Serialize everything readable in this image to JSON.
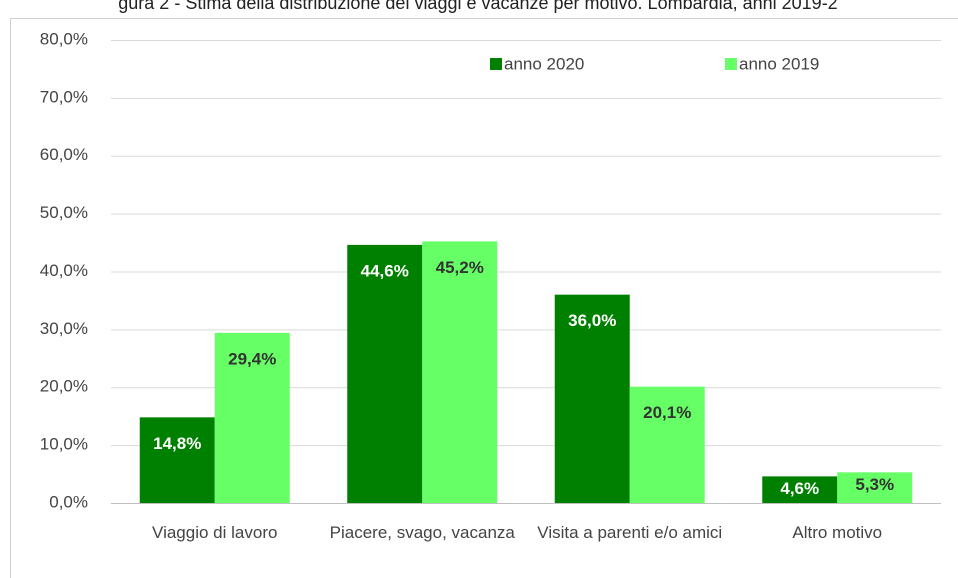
{
  "chart_data": {
    "type": "bar",
    "title": "gura 2 - Stima della distribuzione dei viaggi e vacanze per motivo. Lombardia, anni 2019-2",
    "categories": [
      "Viaggio di lavoro",
      "Piacere, svago, vacanza",
      "Visita a parenti e/o amici",
      "Altro motivo"
    ],
    "series": [
      {
        "name": "anno 2020",
        "color": "#008000",
        "label_color": "#ffffff",
        "values": [
          14.8,
          44.6,
          36.0,
          4.6
        ],
        "value_labels": [
          "14,8%",
          "44,6%",
          "36,0%",
          "4,6%"
        ]
      },
      {
        "name": "anno 2019",
        "color": "#66ff66",
        "label_color": "#333333",
        "values": [
          29.4,
          45.2,
          20.1,
          5.3
        ],
        "value_labels": [
          "29,4%",
          "45,2%",
          "20,1%",
          "5,3%"
        ]
      }
    ],
    "ylim": [
      0,
      80
    ],
    "yticks": [
      {
        "value": 0,
        "label": "0,0%"
      },
      {
        "value": 10,
        "label": "10,0%"
      },
      {
        "value": 20,
        "label": "20,0%"
      },
      {
        "value": 30,
        "label": "30,0%"
      },
      {
        "value": 40,
        "label": "40,0%"
      },
      {
        "value": 50,
        "label": "50,0%"
      },
      {
        "value": 60,
        "label": "60,0%"
      },
      {
        "value": 70,
        "label": "70,0%"
      },
      {
        "value": 80,
        "label": "80,0%"
      }
    ],
    "grid": true,
    "legend": "top"
  }
}
